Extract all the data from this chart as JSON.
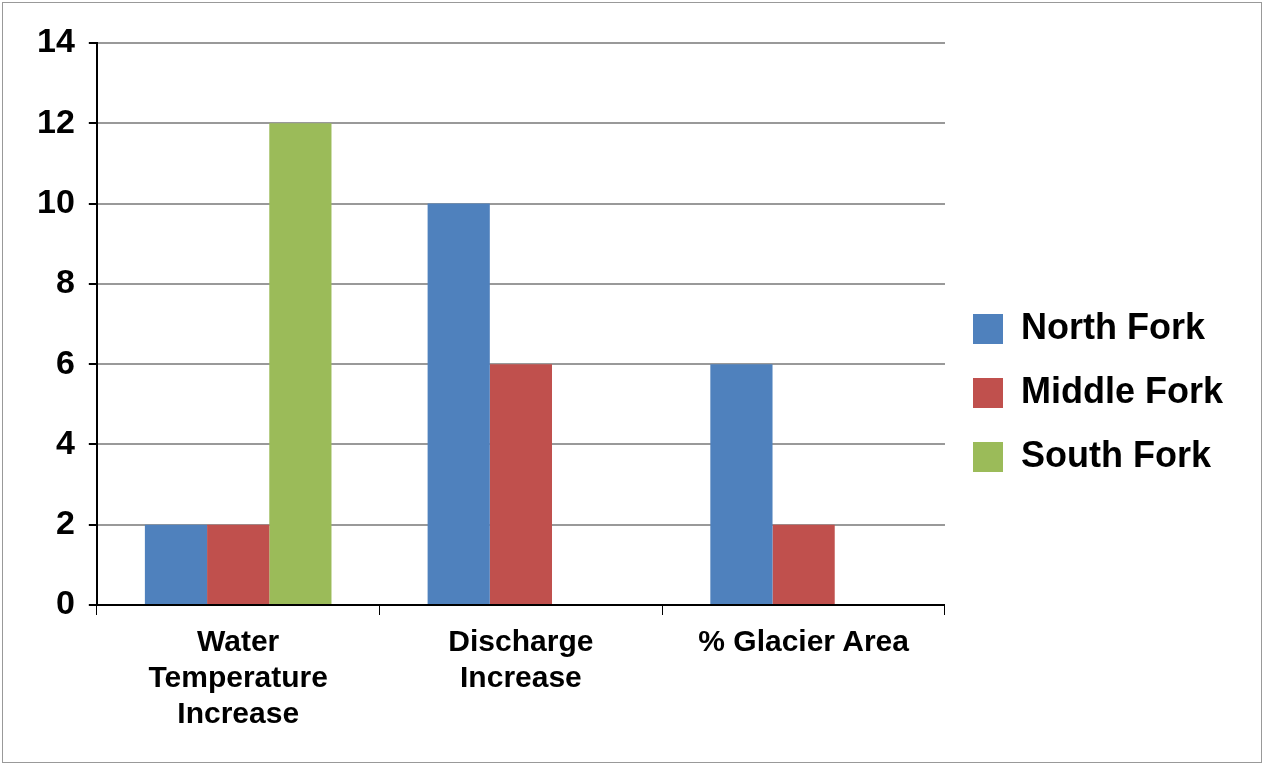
{
  "chart_data": {
    "type": "bar",
    "categories": [
      "Water Temperature Increase",
      "Discharge Increase",
      "% Glacier Area"
    ],
    "series": [
      {
        "name": "North Fork",
        "color": "#4f81bd",
        "values": [
          2,
          10,
          6
        ]
      },
      {
        "name": "Middle Fork",
        "color": "#c0504d",
        "values": [
          2,
          6,
          2
        ]
      },
      {
        "name": "South Fork",
        "color": "#9bbb59",
        "values": [
          12,
          null,
          null
        ]
      }
    ],
    "ylim": [
      0,
      14
    ],
    "yticks": [
      0,
      2,
      4,
      6,
      8,
      10,
      12,
      14
    ],
    "grid": "y",
    "legend": "right"
  }
}
